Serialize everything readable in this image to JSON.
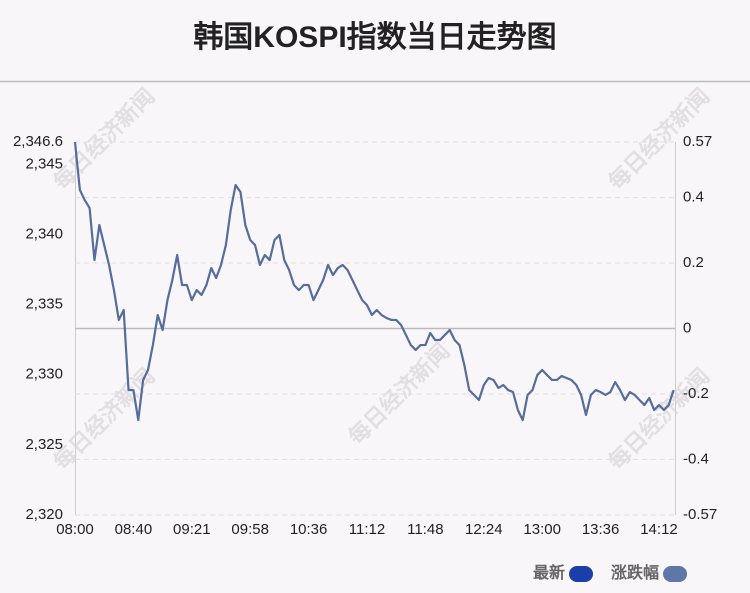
{
  "chart_data": {
    "type": "line",
    "title": "韩国KOSPI指数当日走势图",
    "watermark": "每日经济新闻",
    "categories": [
      "08:00",
      null,
      null,
      null,
      null,
      null,
      null,
      null,
      null,
      null,
      null,
      null,
      "08:40",
      null,
      null,
      null,
      null,
      null,
      null,
      null,
      null,
      null,
      null,
      null,
      "09:21",
      null,
      null,
      null,
      null,
      null,
      null,
      null,
      null,
      null,
      null,
      null,
      "09:58",
      null,
      null,
      null,
      null,
      null,
      null,
      null,
      null,
      null,
      null,
      null,
      "10:36",
      null,
      null,
      null,
      null,
      null,
      null,
      null,
      null,
      null,
      null,
      null,
      "11:12",
      null,
      null,
      null,
      null,
      null,
      null,
      null,
      null,
      null,
      null,
      null,
      "11:48",
      null,
      null,
      null,
      null,
      null,
      null,
      null,
      null,
      null,
      null,
      null,
      "12:24",
      null,
      null,
      null,
      null,
      null,
      null,
      null,
      null,
      null,
      null,
      null,
      "13:00",
      null,
      null,
      null,
      null,
      null,
      null,
      null,
      null,
      null,
      null,
      null,
      "13:36",
      null,
      null,
      null,
      null,
      null,
      null,
      null,
      null,
      null,
      null,
      null,
      "14:12",
      null,
      null,
      null
    ],
    "series": [
      {
        "color": "#566c9b",
        "values": [
          2346.6,
          2343.18,
          2342.46,
          2341.89,
          2338.18,
          2340.68,
          2339.25,
          2337.83,
          2336.04,
          2333.91,
          2334.62,
          2328.91,
          2328.91,
          2326.77,
          2329.63,
          2330.34,
          2332.12,
          2334.26,
          2333.19,
          2335.33,
          2336.76,
          2338.54,
          2336.4,
          2336.4,
          2335.33,
          2336.04,
          2335.69,
          2336.4,
          2337.61,
          2336.9,
          2337.83,
          2339.25,
          2341.75,
          2343.53,
          2343.03,
          2340.68,
          2339.61,
          2339.25,
          2337.83,
          2338.54,
          2338.18,
          2339.61,
          2339.97,
          2338.18,
          2337.47,
          2336.4,
          2336.04,
          2336.4,
          2336.4,
          2335.33,
          2336.04,
          2336.76,
          2337.83,
          2337.11,
          2337.61,
          2337.83,
          2337.47,
          2336.76,
          2336.04,
          2335.33,
          2334.97,
          2334.26,
          2334.62,
          2334.26,
          2334.05,
          2333.91,
          2333.91,
          2333.55,
          2332.84,
          2332.12,
          2331.77,
          2332.12,
          2332.12,
          2332.98,
          2332.48,
          2332.48,
          2332.84,
          2333.19,
          2332.48,
          2332.12,
          2330.7,
          2328.91,
          2328.56,
          2328.2,
          2329.27,
          2329.77,
          2329.63,
          2329.06,
          2329.27,
          2328.91,
          2328.77,
          2327.49,
          2326.77,
          2328.56,
          2328.91,
          2329.98,
          2330.34,
          2329.98,
          2329.63,
          2329.63,
          2329.91,
          2329.77,
          2329.63,
          2329.27,
          2328.56,
          2327.13,
          2328.56,
          2328.91,
          2328.77,
          2328.56,
          2328.77,
          2329.48,
          2328.91,
          2328.2,
          2328.77,
          2328.56,
          2328.2,
          2327.84,
          2328.34,
          2327.49,
          2327.84,
          2327.49,
          2327.84,
          2328.91
        ]
      }
    ],
    "ylim": [
      2320,
      2346.6
    ],
    "yticks": [
      {
        "value": 2346.6,
        "label": "2,346.6"
      },
      {
        "value": 2345,
        "label": "2,345"
      },
      {
        "value": 2340,
        "label": "2,340"
      },
      {
        "value": 2335,
        "label": "2,335"
      },
      {
        "value": 2330,
        "label": "2,330"
      },
      {
        "value": 2325,
        "label": "2,325"
      },
      {
        "value": 2320,
        "label": "2,320"
      }
    ],
    "y2lim": [
      -0.57,
      0.57
    ],
    "y2ticks": [
      0.57,
      0.4,
      0.2,
      0,
      -0.2,
      -0.4,
      -0.57
    ],
    "grid": true,
    "legend": [
      {
        "name": "最新",
        "color": "#1a3faa"
      },
      {
        "name": "涨跌幅",
        "color": "#5f76a8"
      }
    ]
  }
}
